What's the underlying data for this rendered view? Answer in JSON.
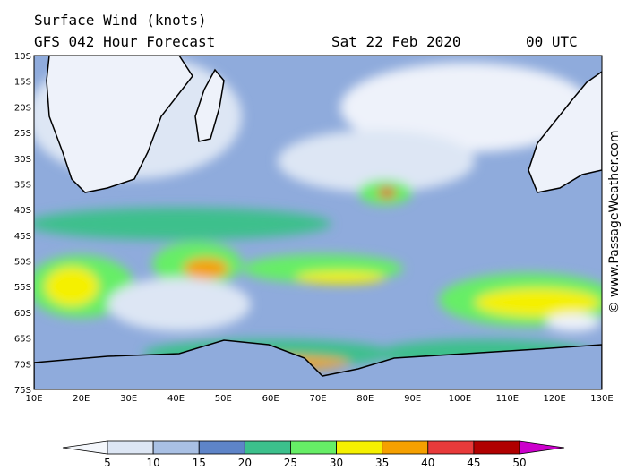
{
  "header": {
    "title": "Surface Wind (knots)",
    "forecast": "GFS 042 Hour Forecast",
    "date": "Sat 22 Feb 2020",
    "time": "00 UTC",
    "watermark": "© www.PassageWeather.com"
  },
  "lat_labels": [
    "10S",
    "15S",
    "20S",
    "25S",
    "30S",
    "35S",
    "40S",
    "45S",
    "50S",
    "55S",
    "60S",
    "65S",
    "70S",
    "75S"
  ],
  "lon_labels": [
    "10E",
    "20E",
    "30E",
    "40E",
    "50E",
    "60E",
    "70E",
    "80E",
    "90E",
    "100E",
    "110E",
    "120E",
    "130E"
  ],
  "colorbar": {
    "ticks": [
      "5",
      "10",
      "15",
      "20",
      "25",
      "30",
      "35",
      "40",
      "45",
      "50"
    ],
    "colors": [
      "#f4f7fc",
      "#dde6f4",
      "#a9c0e4",
      "#5e84c8",
      "#3cc08c",
      "#66ee66",
      "#f5f000",
      "#f5a000",
      "#e83a3a",
      "#b00000",
      "#cc00cc"
    ]
  }
}
